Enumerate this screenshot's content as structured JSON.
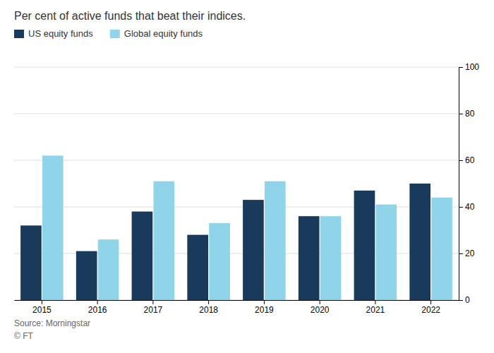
{
  "chart_data": {
    "type": "bar",
    "title": "Per cent of active funds that beat their indices.",
    "categories": [
      "2015",
      "2016",
      "2017",
      "2018",
      "2019",
      "2020",
      "2021",
      "2022"
    ],
    "series": [
      {
        "name": "US equity funds",
        "color": "#1a3a5c",
        "values": [
          32,
          21,
          38,
          28,
          43,
          36,
          47,
          50
        ]
      },
      {
        "name": "Global equity funds",
        "color": "#8fd4e8",
        "values": [
          62,
          26,
          51,
          33,
          51,
          36,
          41,
          44
        ]
      }
    ],
    "ylim": [
      0,
      100
    ],
    "yticks": [
      0,
      20,
      40,
      60,
      80,
      100
    ],
    "grid": true,
    "legend": "upper-left",
    "annotations": [
      "Source: Morningstar",
      "© FT"
    ]
  }
}
